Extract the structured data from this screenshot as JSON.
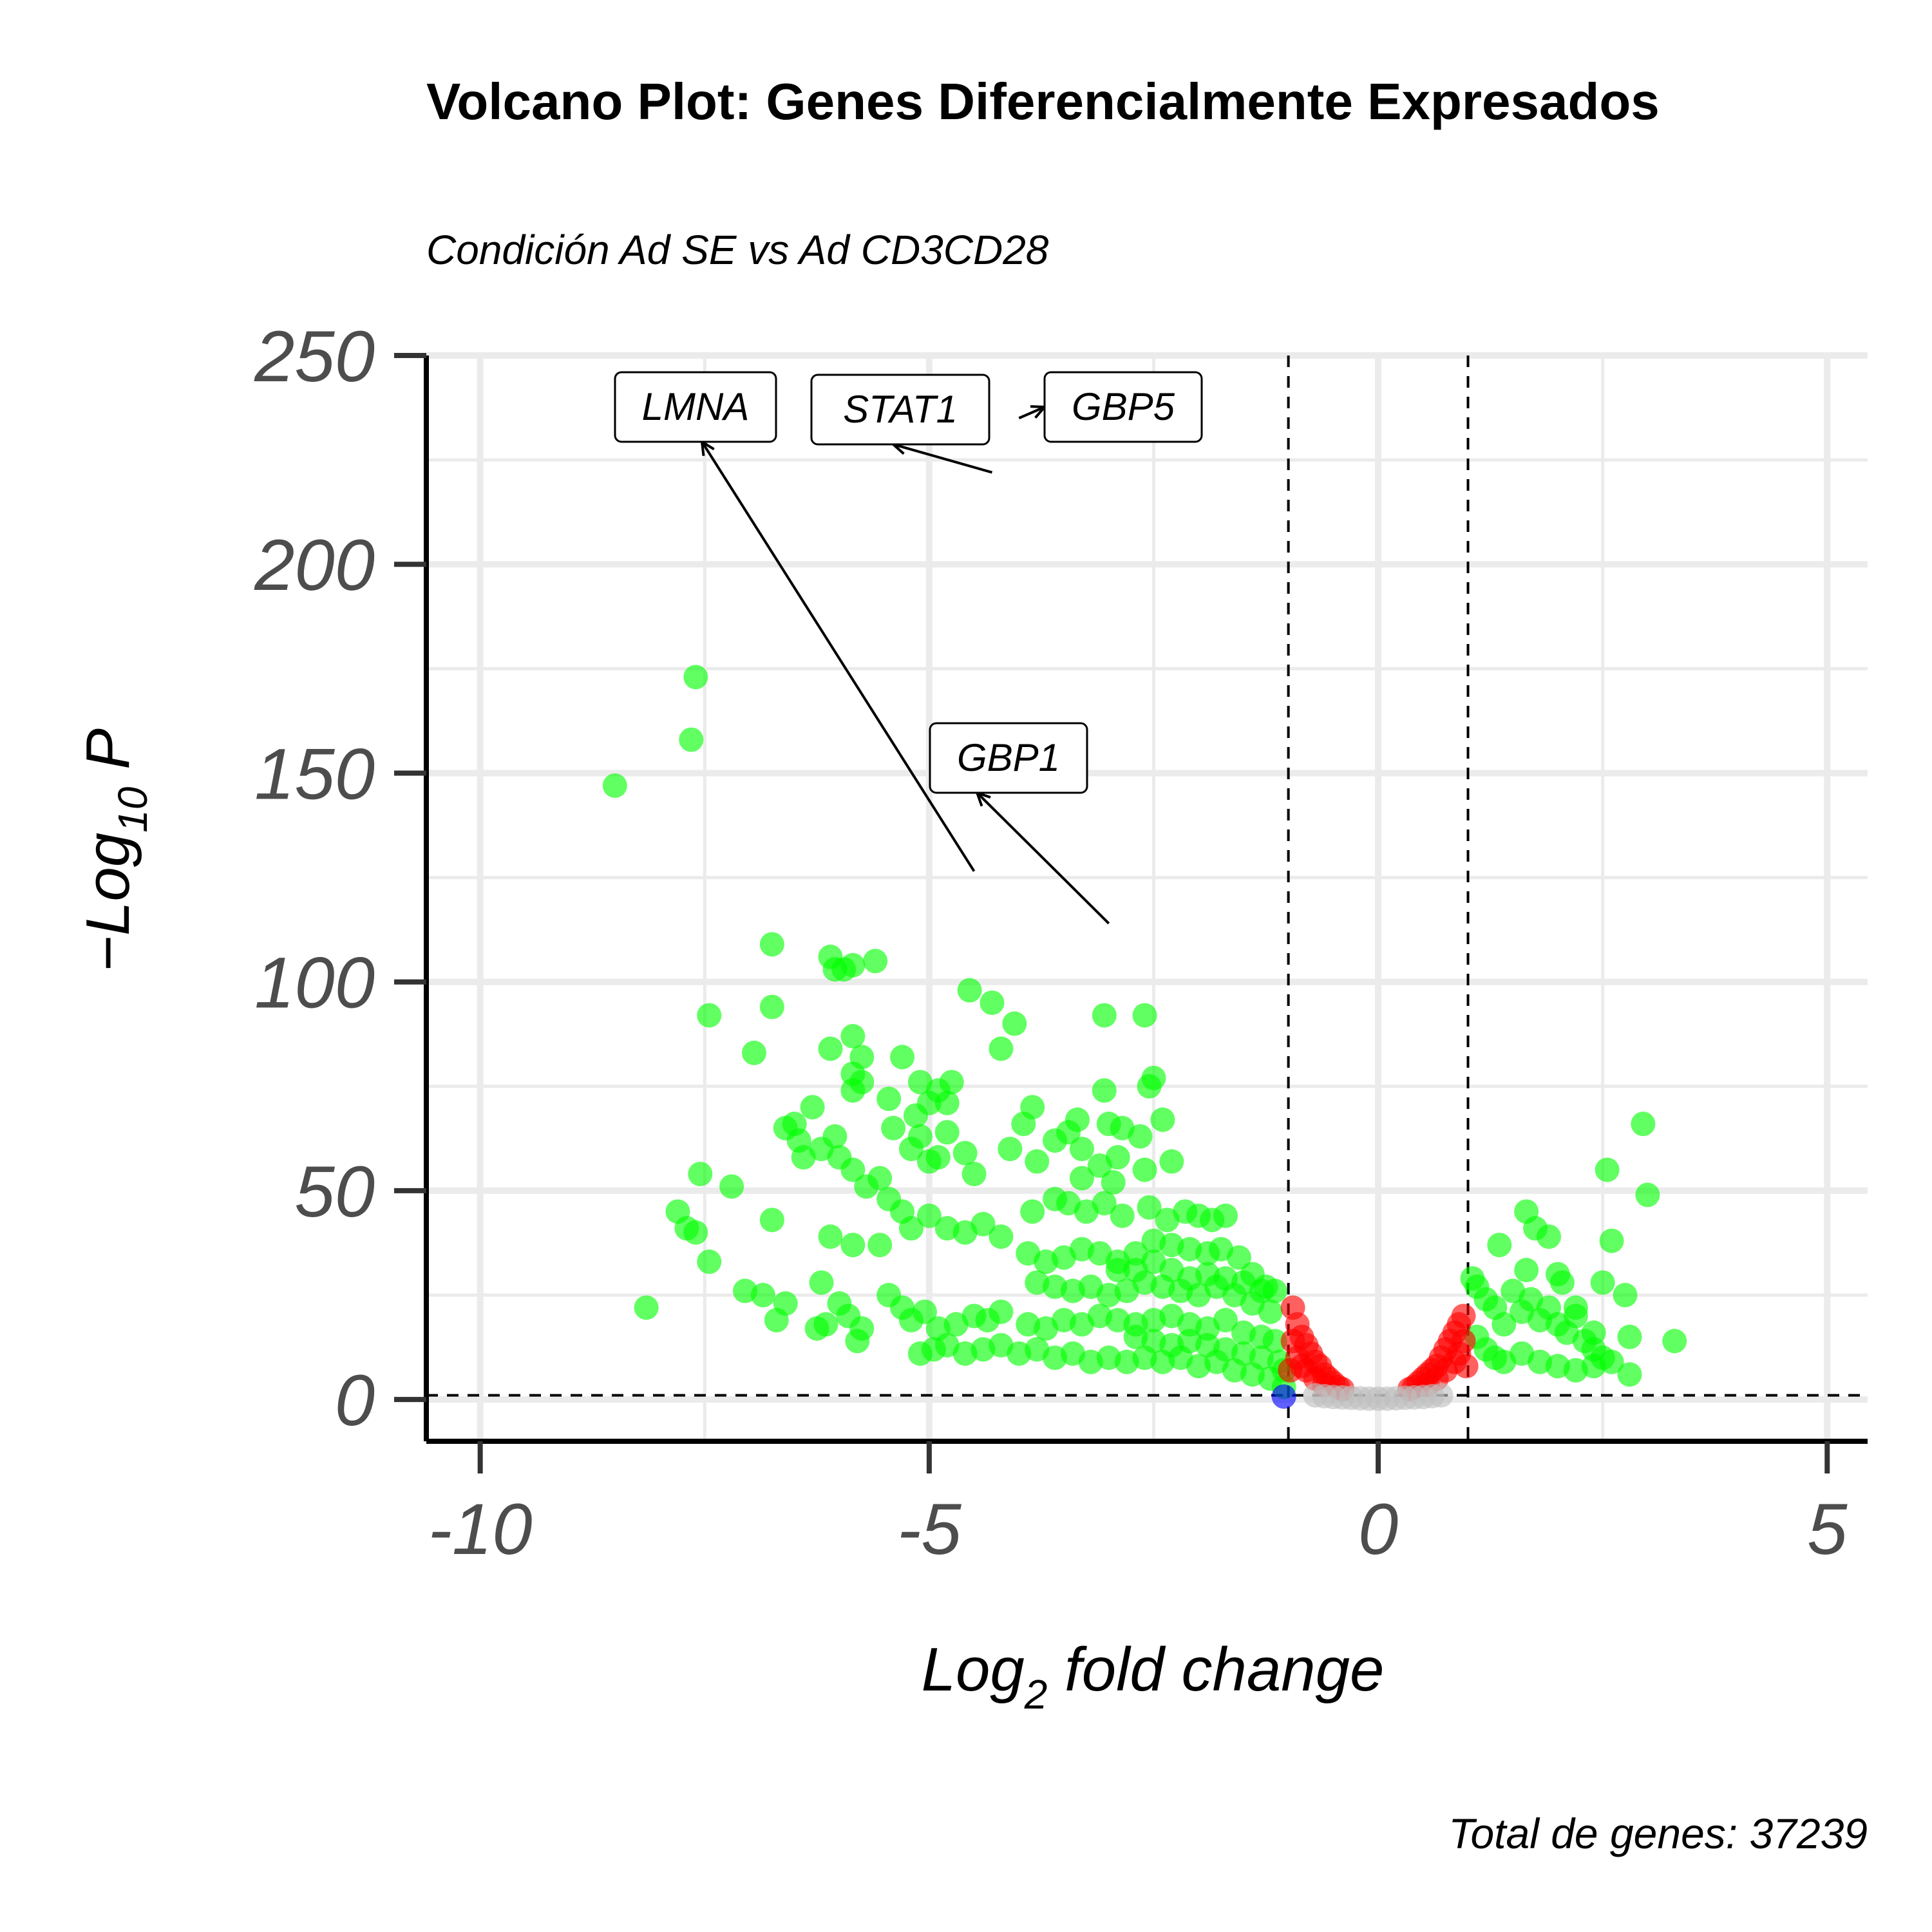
{
  "chart_data": {
    "type": "scatter",
    "title": "Volcano Plot: Genes Diferencialmente Expresados",
    "subtitle": "Condición Ad SE vs Ad CD3CD28",
    "xlabel_main": "Log",
    "xlabel_sub": "2",
    "xlabel_rest": " fold change",
    "ylabel_pre": "−Log",
    "ylabel_sub": "10",
    "ylabel_post": " P",
    "caption": "Total de genes: 37239",
    "xlim": [
      -10.6,
      5.45
    ],
    "ylim": [
      -10,
      250
    ],
    "x_ticks": [
      -10,
      -5,
      0,
      5
    ],
    "x_tick_labels": [
      "-10",
      "-5",
      "0",
      "5"
    ],
    "y_ticks": [
      0,
      50,
      100,
      150,
      200,
      250
    ],
    "y_tick_labels": [
      "0",
      "50",
      "100",
      "150",
      "200",
      "250"
    ],
    "fc_cutoff": [
      -1,
      1
    ],
    "p_cutoff_neglog10": 1,
    "grid": true,
    "legend": "none",
    "colors": {
      "significant": "#00ff00",
      "p_only": "#ff0000",
      "ns": "#bebebe",
      "log2fc_only": "#0000ff"
    },
    "series": [
      {
        "category": "significant",
        "points": [
          [
            -8.5,
            147
          ],
          [
            -7.6,
            173
          ],
          [
            -7.65,
            158
          ],
          [
            -8.15,
            22
          ],
          [
            -7.8,
            45
          ],
          [
            -7.7,
            41
          ],
          [
            -7.6,
            40
          ],
          [
            -7.55,
            54
          ],
          [
            -7.45,
            92
          ],
          [
            -7.45,
            33
          ],
          [
            -7.2,
            51
          ],
          [
            -7.05,
            26
          ],
          [
            -6.85,
            25
          ],
          [
            -6.7,
            19
          ],
          [
            -6.6,
            23
          ],
          [
            -6.75,
            94
          ],
          [
            -6.75,
            109
          ],
          [
            -6.75,
            43
          ],
          [
            -6.95,
            83
          ],
          [
            -6.6,
            65
          ],
          [
            -6.5,
            66
          ],
          [
            -6.45,
            62
          ],
          [
            -6.4,
            58
          ],
          [
            -6.3,
            70
          ],
          [
            -6.2,
            60
          ],
          [
            -6.05,
            63
          ],
          [
            -6.0,
            58
          ],
          [
            -5.85,
            55
          ],
          [
            -6.25,
            17
          ],
          [
            -6.15,
            18
          ],
          [
            -6.2,
            28
          ],
          [
            -6.1,
            39
          ],
          [
            -6.0,
            23
          ],
          [
            -5.9,
            20
          ],
          [
            -5.8,
            14
          ],
          [
            -5.75,
            17
          ],
          [
            -5.85,
            37
          ],
          [
            -5.55,
            37
          ],
          [
            -6.1,
            106
          ],
          [
            -6.05,
            103
          ],
          [
            -5.95,
            103
          ],
          [
            -5.85,
            104
          ],
          [
            -5.6,
            105
          ],
          [
            -5.85,
            87
          ],
          [
            -5.75,
            82
          ],
          [
            -5.85,
            78
          ],
          [
            -5.75,
            76
          ],
          [
            -6.1,
            84
          ],
          [
            -5.85,
            74
          ],
          [
            -5.45,
            72
          ],
          [
            -5.3,
            82
          ],
          [
            -5.15,
            68
          ],
          [
            -5.1,
            76
          ],
          [
            -5.0,
            71
          ],
          [
            -4.9,
            74
          ],
          [
            -4.8,
            71
          ],
          [
            -4.75,
            76
          ],
          [
            -5.4,
            65
          ],
          [
            -5.2,
            60
          ],
          [
            -5.1,
            63
          ],
          [
            -5.0,
            57
          ],
          [
            -4.9,
            58
          ],
          [
            -4.8,
            64
          ],
          [
            -4.6,
            59
          ],
          [
            -4.5,
            54
          ],
          [
            -5.7,
            51
          ],
          [
            -5.55,
            53
          ],
          [
            -5.45,
            48
          ],
          [
            -5.3,
            45
          ],
          [
            -5.2,
            41
          ],
          [
            -5.0,
            44
          ],
          [
            -4.8,
            41
          ],
          [
            -4.6,
            40
          ],
          [
            -4.4,
            42
          ],
          [
            -4.2,
            39
          ],
          [
            -5.45,
            25
          ],
          [
            -5.3,
            22
          ],
          [
            -5.2,
            19
          ],
          [
            -5.05,
            21
          ],
          [
            -4.9,
            17
          ],
          [
            -4.7,
            18
          ],
          [
            -4.5,
            20
          ],
          [
            -4.35,
            19
          ],
          [
            -4.2,
            21
          ],
          [
            -5.1,
            11
          ],
          [
            -4.95,
            12
          ],
          [
            -4.8,
            13
          ],
          [
            -4.6,
            11
          ],
          [
            -4.4,
            12
          ],
          [
            -4.2,
            13
          ],
          [
            -4.0,
            11
          ],
          [
            -3.8,
            12
          ],
          [
            -4.55,
            98
          ],
          [
            -4.3,
            95
          ],
          [
            -4.05,
            90
          ],
          [
            -4.2,
            84
          ],
          [
            -3.85,
            70
          ],
          [
            -3.95,
            66
          ],
          [
            -4.1,
            60
          ],
          [
            -3.8,
            57
          ],
          [
            -3.6,
            62
          ],
          [
            -3.45,
            64
          ],
          [
            -3.3,
            60
          ],
          [
            -3.1,
            56
          ],
          [
            -2.9,
            58
          ],
          [
            -3.05,
            92
          ],
          [
            -2.6,
            92
          ],
          [
            -3.05,
            74
          ],
          [
            -2.55,
            75
          ],
          [
            -2.5,
            77
          ],
          [
            -2.4,
            67
          ],
          [
            -2.65,
            63
          ],
          [
            -3.0,
            66
          ],
          [
            -2.85,
            65
          ],
          [
            -3.35,
            67
          ],
          [
            -2.3,
            57
          ],
          [
            -2.6,
            55
          ],
          [
            -2.95,
            52
          ],
          [
            -3.3,
            53
          ],
          [
            -3.6,
            48
          ],
          [
            -3.45,
            47
          ],
          [
            -3.85,
            45
          ],
          [
            -3.25,
            45
          ],
          [
            -3.05,
            47
          ],
          [
            -2.85,
            44
          ],
          [
            -2.55,
            46
          ],
          [
            -2.35,
            43
          ],
          [
            -2.15,
            45
          ],
          [
            -2.0,
            44
          ],
          [
            -1.85,
            43
          ],
          [
            -1.7,
            44
          ],
          [
            -2.5,
            38
          ],
          [
            -2.3,
            37
          ],
          [
            -2.1,
            36
          ],
          [
            -1.9,
            35
          ],
          [
            -1.75,
            36
          ],
          [
            -1.55,
            34
          ],
          [
            -1.4,
            30
          ],
          [
            -1.25,
            27
          ],
          [
            -1.15,
            26
          ],
          [
            -3.9,
            35
          ],
          [
            -3.7,
            33
          ],
          [
            -3.5,
            34
          ],
          [
            -3.3,
            36
          ],
          [
            -3.1,
            35
          ],
          [
            -2.9,
            33
          ],
          [
            -2.7,
            31
          ],
          [
            -3.8,
            28
          ],
          [
            -3.6,
            27
          ],
          [
            -3.4,
            26
          ],
          [
            -3.2,
            27
          ],
          [
            -3.0,
            25
          ],
          [
            -2.8,
            26
          ],
          [
            -2.6,
            28
          ],
          [
            -2.4,
            27
          ],
          [
            -2.2,
            26
          ],
          [
            -2.0,
            25
          ],
          [
            -1.8,
            27
          ],
          [
            -1.6,
            25
          ],
          [
            -1.4,
            23
          ],
          [
            -1.2,
            21
          ],
          [
            -3.9,
            18
          ],
          [
            -3.7,
            17
          ],
          [
            -3.5,
            19
          ],
          [
            -3.3,
            18
          ],
          [
            -3.1,
            20
          ],
          [
            -2.9,
            19
          ],
          [
            -2.7,
            18
          ],
          [
            -2.5,
            19
          ],
          [
            -2.3,
            20
          ],
          [
            -2.1,
            18
          ],
          [
            -1.9,
            17
          ],
          [
            -1.7,
            19
          ],
          [
            -1.5,
            16
          ],
          [
            -1.3,
            15
          ],
          [
            -1.15,
            14
          ],
          [
            -3.6,
            10
          ],
          [
            -3.4,
            11
          ],
          [
            -3.2,
            9
          ],
          [
            -3.0,
            10
          ],
          [
            -2.8,
            9
          ],
          [
            -2.6,
            10
          ],
          [
            -2.4,
            9
          ],
          [
            -2.2,
            10
          ],
          [
            -2.0,
            8
          ],
          [
            -1.8,
            9
          ],
          [
            -1.6,
            7
          ],
          [
            -1.4,
            6
          ],
          [
            -1.2,
            5
          ],
          [
            -2.9,
            31
          ],
          [
            -2.7,
            35
          ],
          [
            -2.5,
            33
          ],
          [
            -2.3,
            31
          ],
          [
            -2.1,
            29
          ],
          [
            -1.9,
            30
          ],
          [
            -1.7,
            29
          ],
          [
            -1.5,
            28
          ],
          [
            -1.3,
            26
          ],
          [
            -2.7,
            15
          ],
          [
            -2.5,
            14
          ],
          [
            -2.3,
            13
          ],
          [
            -2.1,
            14
          ],
          [
            -1.9,
            13
          ],
          [
            -1.7,
            12
          ],
          [
            -1.5,
            11
          ],
          [
            -1.3,
            10
          ],
          [
            -1.1,
            9
          ],
          [
            -1.05,
            7
          ],
          [
            -1.05,
            3
          ],
          [
            1.05,
            29
          ],
          [
            1.1,
            27
          ],
          [
            1.2,
            24
          ],
          [
            1.3,
            22
          ],
          [
            1.4,
            18
          ],
          [
            1.5,
            26
          ],
          [
            1.6,
            21
          ],
          [
            1.7,
            24
          ],
          [
            1.8,
            19
          ],
          [
            1.9,
            22
          ],
          [
            2.0,
            18
          ],
          [
            2.1,
            16
          ],
          [
            2.2,
            20
          ],
          [
            2.3,
            14
          ],
          [
            2.4,
            12
          ],
          [
            2.5,
            10
          ],
          [
            1.1,
            15
          ],
          [
            1.2,
            12
          ],
          [
            1.3,
            10
          ],
          [
            1.4,
            9
          ],
          [
            1.6,
            11
          ],
          [
            1.8,
            9
          ],
          [
            2.0,
            8
          ],
          [
            2.2,
            7
          ],
          [
            2.4,
            8
          ],
          [
            2.6,
            9
          ],
          [
            2.8,
            6
          ],
          [
            1.35,
            37
          ],
          [
            1.65,
            31
          ],
          [
            1.65,
            45
          ],
          [
            1.75,
            41
          ],
          [
            1.9,
            39
          ],
          [
            2.0,
            30
          ],
          [
            2.05,
            28
          ],
          [
            2.2,
            22
          ],
          [
            2.5,
            28
          ],
          [
            2.55,
            55
          ],
          [
            2.6,
            38
          ],
          [
            2.75,
            25
          ],
          [
            2.95,
            66
          ],
          [
            3.0,
            49
          ],
          [
            3.3,
            14
          ],
          [
            2.8,
            15
          ],
          [
            2.4,
            16
          ]
        ]
      },
      {
        "category": "p_only",
        "points": [
          [
            -0.95,
            22
          ],
          [
            -0.9,
            18
          ],
          [
            -0.85,
            15
          ],
          [
            -0.8,
            13
          ],
          [
            -0.75,
            11
          ],
          [
            -0.7,
            9
          ],
          [
            -0.65,
            8
          ],
          [
            -0.6,
            6
          ],
          [
            -0.55,
            5
          ],
          [
            -0.5,
            4
          ],
          [
            -0.45,
            3
          ],
          [
            -0.4,
            2.5
          ],
          [
            -0.9,
            10
          ],
          [
            -0.85,
            8
          ],
          [
            -0.8,
            7
          ],
          [
            -0.7,
            5
          ],
          [
            -0.6,
            3.5
          ],
          [
            -0.95,
            14
          ],
          [
            -0.98,
            7
          ],
          [
            0.95,
            20
          ],
          [
            0.9,
            18
          ],
          [
            0.85,
            16
          ],
          [
            0.8,
            14
          ],
          [
            0.75,
            12
          ],
          [
            0.7,
            10
          ],
          [
            0.65,
            8
          ],
          [
            0.6,
            7
          ],
          [
            0.55,
            6
          ],
          [
            0.5,
            5
          ],
          [
            0.45,
            4
          ],
          [
            0.4,
            3
          ],
          [
            0.35,
            2.5
          ],
          [
            0.9,
            11
          ],
          [
            0.85,
            9
          ],
          [
            0.75,
            7
          ],
          [
            0.65,
            5
          ],
          [
            0.55,
            3.5
          ],
          [
            0.95,
            14
          ],
          [
            0.98,
            8
          ]
        ]
      },
      {
        "category": "ns",
        "points": [
          [
            -0.7,
            1
          ],
          [
            -0.6,
            0.8
          ],
          [
            -0.5,
            0.6
          ],
          [
            -0.4,
            0.5
          ],
          [
            -0.3,
            0.4
          ],
          [
            -0.2,
            0.3
          ],
          [
            -0.1,
            0.2
          ],
          [
            0.0,
            0.2
          ],
          [
            0.1,
            0.2
          ],
          [
            0.2,
            0.3
          ],
          [
            0.3,
            0.4
          ],
          [
            0.4,
            0.5
          ],
          [
            0.5,
            0.6
          ],
          [
            0.6,
            0.8
          ],
          [
            0.7,
            1
          ]
        ]
      },
      {
        "category": "log2fc_only",
        "points": [
          [
            -1.05,
            0.7
          ]
        ]
      }
    ],
    "labeled_genes": [
      {
        "label": "LMNA",
        "x": -4.5,
        "y": 126.5
      },
      {
        "label": "STAT1",
        "x": -4.3,
        "y": 222
      },
      {
        "label": "GBP5",
        "x": -4.0,
        "y": 235
      },
      {
        "label": "GBP1",
        "x": -3.0,
        "y": 114
      }
    ]
  }
}
